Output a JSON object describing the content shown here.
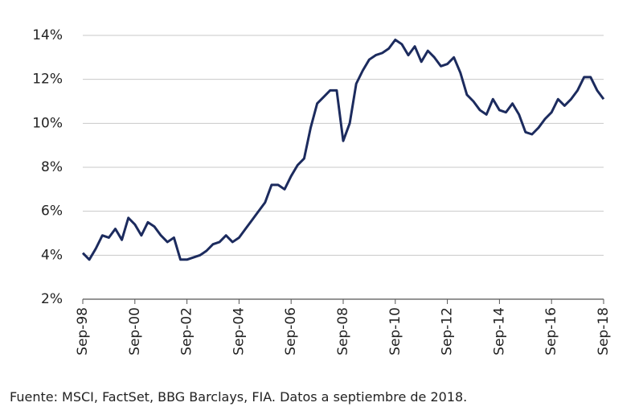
{
  "chart_data": {
    "type": "line",
    "categories": [
      "Sep-98",
      null,
      null,
      null,
      null,
      null,
      null,
      null,
      "Sep-00",
      null,
      null,
      null,
      null,
      null,
      null,
      null,
      "Sep-02",
      null,
      null,
      null,
      null,
      null,
      null,
      null,
      "Sep-04",
      null,
      null,
      null,
      null,
      null,
      null,
      null,
      "Sep-06",
      null,
      null,
      null,
      null,
      null,
      null,
      null,
      "Sep-08",
      null,
      null,
      null,
      null,
      null,
      null,
      null,
      "Sep-10",
      null,
      null,
      null,
      null,
      null,
      null,
      null,
      "Sep-12",
      null,
      null,
      null,
      null,
      null,
      null,
      null,
      "Sep-14",
      null,
      null,
      null,
      null,
      null,
      null,
      null,
      "Sep-16",
      null,
      null,
      null,
      null,
      null,
      null,
      null,
      "Sep-18"
    ],
    "values": [
      4.1,
      3.8,
      4.3,
      4.9,
      4.8,
      5.2,
      4.7,
      5.7,
      5.4,
      4.9,
      5.5,
      5.3,
      4.9,
      4.6,
      4.8,
      3.8,
      3.8,
      3.9,
      4.0,
      4.2,
      4.5,
      4.6,
      4.9,
      4.6,
      4.8,
      5.2,
      5.6,
      6.0,
      6.4,
      7.2,
      7.2,
      7.0,
      7.6,
      8.1,
      8.4,
      9.8,
      10.9,
      11.2,
      11.5,
      11.5,
      9.2,
      10.0,
      11.8,
      12.4,
      12.9,
      13.1,
      13.2,
      13.4,
      13.8,
      13.6,
      13.1,
      13.5,
      12.8,
      13.3,
      13.0,
      12.6,
      12.7,
      13.0,
      12.3,
      11.3,
      11.0,
      10.6,
      10.4,
      11.1,
      10.6,
      10.5,
      10.9,
      10.4,
      9.6,
      9.5,
      9.8,
      10.2,
      10.5,
      11.1,
      10.8,
      11.1,
      11.5,
      12.1,
      12.1,
      11.5,
      11.1
    ],
    "color": "#1c2b5e",
    "ylim": [
      2,
      14
    ],
    "yticks": [
      {
        "value": 2,
        "label": "2%"
      },
      {
        "value": 4,
        "label": "4%"
      },
      {
        "value": 6,
        "label": "6%"
      },
      {
        "value": 8,
        "label": "8%"
      },
      {
        "value": 10,
        "label": "10%"
      },
      {
        "value": 12,
        "label": "12%"
      },
      {
        "value": 14,
        "label": "14%"
      }
    ],
    "grid": true
  },
  "source": "Fuente: MSCI, FactSet, BBG Barclays, FIA. Datos a septiembre de 2018."
}
